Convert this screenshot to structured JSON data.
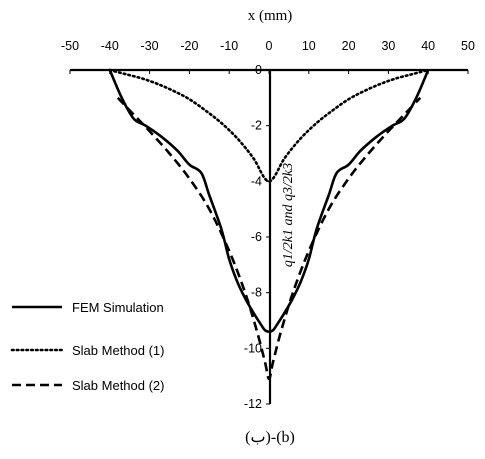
{
  "chart_data": {
    "type": "line",
    "xlabel": "x (mm)",
    "ylabel": "q1/2k1 and q3/2k3",
    "caption": "(ب)-(b)",
    "xlim": [
      -50,
      50
    ],
    "ylim": [
      -12,
      0
    ],
    "x_ticks": [
      "-50",
      "-40",
      "-30",
      "-20",
      "-10",
      "0",
      "10",
      "20",
      "30",
      "40",
      "50"
    ],
    "y_ticks": [
      "0",
      "-2",
      "-4",
      "-6",
      "-8",
      "-10",
      "-12"
    ],
    "legend_position": "bottom-left",
    "grid": false,
    "series": [
      {
        "name": "FEM Simulation",
        "style": "solid",
        "color": "#000000",
        "x": [
          -40,
          -37,
          -34,
          -31,
          -27,
          -23,
          -20,
          -17,
          -15,
          -12,
          -10,
          -8,
          -6,
          -4,
          -2,
          -1,
          0,
          1,
          2,
          4,
          6,
          8,
          10,
          12,
          15,
          17,
          20,
          23,
          27,
          31,
          34,
          37,
          40
        ],
        "y": [
          0,
          -1.0,
          -1.75,
          -2.0,
          -2.4,
          -2.9,
          -3.4,
          -3.7,
          -4.5,
          -5.7,
          -6.8,
          -7.6,
          -8.2,
          -8.7,
          -9.15,
          -9.35,
          -9.4,
          -9.35,
          -9.15,
          -8.7,
          -8.2,
          -7.6,
          -6.8,
          -5.7,
          -4.5,
          -3.7,
          -3.4,
          -2.9,
          -2.4,
          -2.0,
          -1.75,
          -1.0,
          0
        ]
      },
      {
        "name": "Slab Method (1)",
        "style": "dotted",
        "color": "#000000",
        "x": [
          -40,
          -36,
          -32,
          -28,
          -24,
          -20,
          -16,
          -12,
          -8,
          -4,
          0,
          4,
          8,
          12,
          16,
          20,
          24,
          28,
          32,
          36,
          40
        ],
        "y": [
          0,
          -0.15,
          -0.3,
          -0.5,
          -0.75,
          -1.05,
          -1.45,
          -1.9,
          -2.45,
          -3.15,
          -4.0,
          -3.15,
          -2.45,
          -1.9,
          -1.45,
          -1.05,
          -0.75,
          -0.5,
          -0.3,
          -0.15,
          0
        ]
      },
      {
        "name": "Slab Method (2)",
        "style": "dashed",
        "color": "#000000",
        "x": [
          -38,
          -34,
          -30,
          -25,
          -20,
          -15,
          -10,
          -6,
          -3,
          -1,
          0,
          1,
          3,
          6,
          10,
          15,
          20,
          25,
          30,
          34,
          38
        ],
        "y": [
          -1.0,
          -1.6,
          -2.2,
          -3.0,
          -3.9,
          -5.0,
          -6.5,
          -8.0,
          -9.4,
          -10.5,
          -11.1,
          -10.5,
          -9.4,
          -8.0,
          -6.5,
          -5.0,
          -3.9,
          -3.0,
          -2.2,
          -1.6,
          -1.0
        ]
      }
    ]
  }
}
